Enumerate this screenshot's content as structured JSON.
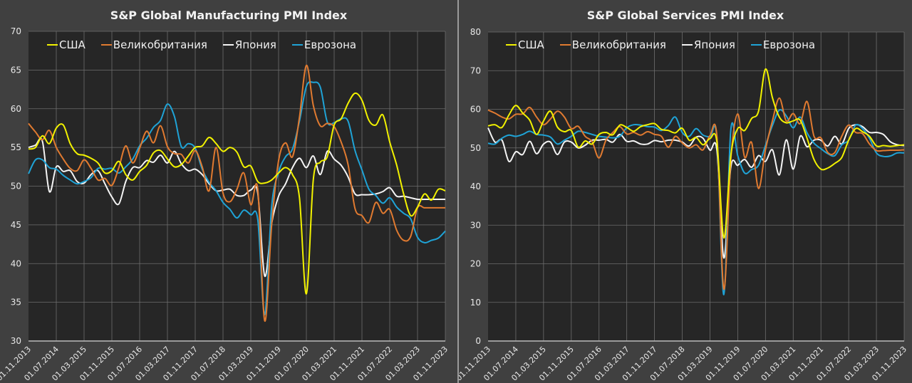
{
  "colors": {
    "usa": "#f2f200",
    "uk": "#e07a30",
    "japan": "#f4f4f4",
    "eurozone": "#1fa3d6",
    "plot_bg": "#262626",
    "panel_bg": "#404040",
    "grid": "#6e6e6e",
    "text": "#e8e8e8"
  },
  "chart_data": [
    {
      "type": "line",
      "title": "S&P Global Manufacturing PMI Index",
      "xlabel": "",
      "ylabel": "",
      "ylim": [
        30,
        70
      ],
      "yticks": [
        30,
        35,
        40,
        45,
        50,
        55,
        60,
        65,
        70
      ],
      "grid": true,
      "legend": "top-left",
      "x_tick_labels": [
        "01.11.2013",
        "01.07.2014",
        "01.03.2015",
        "01.11.2015",
        "01.07.2016",
        "01.03.2017",
        "01.11.2017",
        "01.07.2018",
        "01.03.2019",
        "01.11.2019",
        "01.07.2020",
        "01.03.2021",
        "01.11.2021",
        "01.07.2022",
        "01.03.2023",
        "01.11.2023"
      ],
      "x_start": "01.11.2013",
      "x_step_months": 2,
      "series": [
        {
          "name": "США",
          "key": "usa",
          "values": [
            54.8,
            55.0,
            56.5,
            55.5,
            57.5,
            57.9,
            55.5,
            54.2,
            54.0,
            53.6,
            53.0,
            51.7,
            52.0,
            53.2,
            51.5,
            50.8,
            51.9,
            52.7,
            54.3,
            54.6,
            53.5,
            52.5,
            52.8,
            53.9,
            55.0,
            55.2,
            56.3,
            55.5,
            54.5,
            55.0,
            54.4,
            52.5,
            52.6,
            50.6,
            50.4,
            50.8,
            51.7,
            52.4,
            51.5,
            48.5,
            36.1,
            50.9,
            53.1,
            53.8,
            57.9,
            58.7,
            60.7,
            62.0,
            61.1,
            58.5,
            57.9,
            59.2,
            55.7,
            52.7,
            49.0,
            46.2,
            47.3,
            49.0,
            48.2,
            49.6,
            49.4
          ]
        },
        {
          "name": "Великобритания",
          "key": "uk",
          "values": [
            58.1,
            57.0,
            56.0,
            57.2,
            55.0,
            53.5,
            52.3,
            52.0,
            53.4,
            52.3,
            50.8,
            51.0,
            50.1,
            52.4,
            55.2,
            53.0,
            54.9,
            57.1,
            55.6,
            57.8,
            55.1,
            54.2,
            54.1,
            53.0,
            54.6,
            52.5,
            49.4,
            55.0,
            49.1,
            48.0,
            49.6,
            51.7,
            47.6,
            49.6,
            32.6,
            45.0,
            53.3,
            55.6,
            53.8,
            58.9,
            65.6,
            60.4,
            57.8,
            58.1,
            57.7,
            55.7,
            52.8,
            47.1,
            46.2,
            45.3,
            47.9,
            46.5,
            47.0,
            44.3,
            43.0,
            43.5,
            47.2,
            47.2,
            47.2,
            47.2,
            47.2
          ]
        },
        {
          "name": "Япония",
          "key": "japan",
          "values": [
            55.0,
            55.3,
            55.8,
            49.3,
            52.5,
            51.9,
            52.0,
            50.6,
            50.4,
            51.5,
            52.0,
            50.3,
            48.6,
            47.7,
            50.6,
            52.4,
            52.4,
            53.3,
            53.1,
            54.0,
            53.0,
            54.5,
            52.9,
            52.0,
            52.2,
            51.5,
            50.3,
            49.4,
            49.5,
            49.6,
            48.8,
            48.8,
            49.5,
            49.1,
            38.4,
            45.2,
            48.7,
            50.3,
            52.4,
            53.6,
            52.4,
            53.9,
            51.5,
            54.5,
            53.5,
            52.7,
            51.2,
            49.0,
            48.9,
            48.9,
            49.0,
            49.3,
            49.8,
            48.7,
            48.7,
            48.5,
            48.3,
            48.3,
            48.3,
            48.3,
            48.3
          ]
        },
        {
          "name": "Еврозона",
          "key": "eurozone",
          "values": [
            51.6,
            53.4,
            53.4,
            52.4,
            52.2,
            51.4,
            50.8,
            50.3,
            50.6,
            51.1,
            52.3,
            52.2,
            52.3,
            51.7,
            52.5,
            53.5,
            55.2,
            56.2,
            57.6,
            58.5,
            60.6,
            59.0,
            55.1,
            55.5,
            54.9,
            52.2,
            50.5,
            49.4,
            47.9,
            47.0,
            45.9,
            46.9,
            46.3,
            45.7,
            33.4,
            47.4,
            51.8,
            53.8,
            54.8,
            58.4,
            62.9,
            63.4,
            62.8,
            58.3,
            58.2,
            58.7,
            58.4,
            54.6,
            52.1,
            49.6,
            48.8,
            47.8,
            48.5,
            47.3,
            46.5,
            45.8,
            43.4,
            42.7,
            43.0,
            43.3,
            44.2
          ]
        }
      ]
    },
    {
      "type": "line",
      "title": "S&P Global Services PMI Index",
      "xlabel": "",
      "ylabel": "",
      "ylim": [
        0,
        80
      ],
      "yticks": [
        0,
        10,
        20,
        30,
        40,
        50,
        60,
        70,
        80
      ],
      "grid": true,
      "legend": "top-left",
      "x_tick_labels": [
        "01.11.2013",
        "01.07.2014",
        "01.03.2015",
        "01.11.2015",
        "01.07.2016",
        "01.03.2017",
        "01.11.2017",
        "01.07.2018",
        "01.03.2019",
        "01.11.2019",
        "01.07.2020",
        "01.03.2021",
        "01.11.2021",
        "01.07.2022",
        "01.03.2023",
        "01.11.2023"
      ],
      "x_start": "01.11.2013",
      "x_step_months": 2,
      "series": [
        {
          "name": "США",
          "key": "usa",
          "values": [
            55.7,
            56.0,
            55.3,
            58.5,
            61.0,
            59.0,
            57.2,
            53.5,
            57.0,
            59.5,
            55.4,
            54.2,
            54.5,
            50.2,
            51.8,
            51.0,
            53.5,
            54.0,
            53.4,
            55.9,
            55.3,
            54.3,
            55.5,
            56.0,
            56.3,
            54.8,
            54.5,
            53.9,
            55.1,
            52.0,
            52.7,
            50.8,
            52.4,
            51.5,
            26.7,
            48.0,
            55.0,
            54.5,
            57.6,
            59.5,
            70.4,
            63.0,
            58.0,
            56.5,
            57.0,
            57.2,
            52.5,
            47.0,
            44.5,
            44.8,
            46.0,
            47.5,
            52.0,
            55.0,
            54.2,
            53.0,
            50.5,
            50.6,
            50.4,
            50.6,
            50.8
          ]
        },
        {
          "name": "Великобритания",
          "key": "uk",
          "values": [
            59.8,
            59.0,
            58.0,
            57.5,
            58.7,
            58.8,
            60.5,
            58.0,
            56.0,
            57.5,
            59.5,
            58.0,
            55.0,
            55.6,
            53.0,
            51.6,
            47.4,
            52.0,
            54.0,
            55.5,
            53.6,
            54.0,
            53.3,
            54.2,
            53.5,
            53.0,
            50.2,
            53.0,
            51.3,
            50.0,
            50.8,
            49.5,
            53.2,
            53.0,
            13.4,
            47.0,
            58.8,
            47.6,
            51.4,
            39.5,
            49.5,
            57.0,
            62.9,
            57.0,
            58.9,
            56.3,
            62.0,
            53.0,
            52.6,
            48.8,
            48.8,
            53.0,
            55.9,
            54.0,
            53.7,
            51.0,
            49.3,
            49.3,
            49.4,
            49.4,
            49.5
          ]
        },
        {
          "name": "Япония",
          "key": "japan",
          "values": [
            55.2,
            51.5,
            52.0,
            46.5,
            49.0,
            48.3,
            51.7,
            48.5,
            51.0,
            51.5,
            48.3,
            51.5,
            51.5,
            50.0,
            50.7,
            52.0,
            52.0,
            52.2,
            51.5,
            53.5,
            51.7,
            51.8,
            51.0,
            51.0,
            51.9,
            51.6,
            52.0,
            52.0,
            51.5,
            50.5,
            52.8,
            52.5,
            49.4,
            49.4,
            21.5,
            45.0,
            45.5,
            47.0,
            45.0,
            48.0,
            46.5,
            49.5,
            43.0,
            52.1,
            44.5,
            53.0,
            50.3,
            52.0,
            52.0,
            50.5,
            53.0,
            51.0,
            55.0,
            56.0,
            55.5,
            54.0,
            54.0,
            53.5,
            51.6,
            50.8,
            50.6
          ]
        },
        {
          "name": "Еврозона",
          "key": "eurozone",
          "values": [
            51.2,
            51.0,
            52.5,
            53.3,
            53.0,
            53.5,
            54.3,
            53.5,
            53.3,
            52.8,
            51.0,
            52.0,
            53.0,
            54.3,
            54.0,
            53.5,
            53.0,
            52.8,
            52.6,
            53.0,
            55.2,
            56.0,
            55.9,
            55.5,
            55.4,
            54.5,
            55.8,
            58.0,
            54.0,
            53.0,
            55.0,
            53.3,
            52.8,
            52.6,
            12.0,
            54.7,
            48.0,
            43.5,
            44.4,
            45.5,
            50.6,
            55.8,
            59.8,
            58.3,
            55.2,
            58.0,
            53.9,
            51.2,
            49.8,
            48.5,
            48.0,
            50.8,
            52.0,
            55.9,
            55.0,
            52.5,
            48.7,
            47.8,
            47.9,
            48.7,
            48.7
          ]
        }
      ]
    }
  ]
}
